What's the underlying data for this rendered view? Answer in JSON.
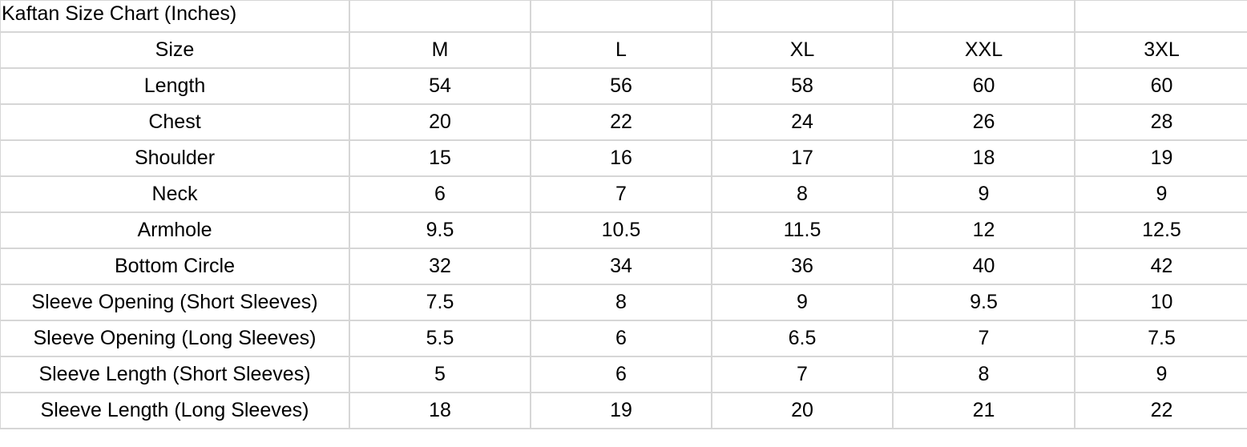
{
  "title": "Kaftan Size Chart (Inches)",
  "header": [
    "Size",
    "M",
    "L",
    "XL",
    "XXL",
    "3XL"
  ],
  "rows": [
    [
      "Length",
      "54",
      "56",
      "58",
      "60",
      "60"
    ],
    [
      "Chest",
      "20",
      "22",
      "24",
      "26",
      "28"
    ],
    [
      "Shoulder",
      "15",
      "16",
      "17",
      "18",
      "19"
    ],
    [
      "Neck",
      "6",
      "7",
      "8",
      "9",
      "9"
    ],
    [
      "Armhole",
      "9.5",
      "10.5",
      "11.5",
      "12",
      "12.5"
    ],
    [
      "Bottom Circle",
      "32",
      "34",
      "36",
      "40",
      "42"
    ],
    [
      "Sleeve Opening (Short Sleeves)",
      "7.5",
      "8",
      "9",
      "9.5",
      "10"
    ],
    [
      "Sleeve Opening (Long Sleeves)",
      "5.5",
      "6",
      "6.5",
      "7",
      "7.5"
    ],
    [
      "Sleeve Length (Short Sleeves)",
      "5",
      "6",
      "7",
      "8",
      "9"
    ],
    [
      "Sleeve Length (Long Sleeves)",
      "18",
      "19",
      "20",
      "21",
      "22"
    ]
  ]
}
